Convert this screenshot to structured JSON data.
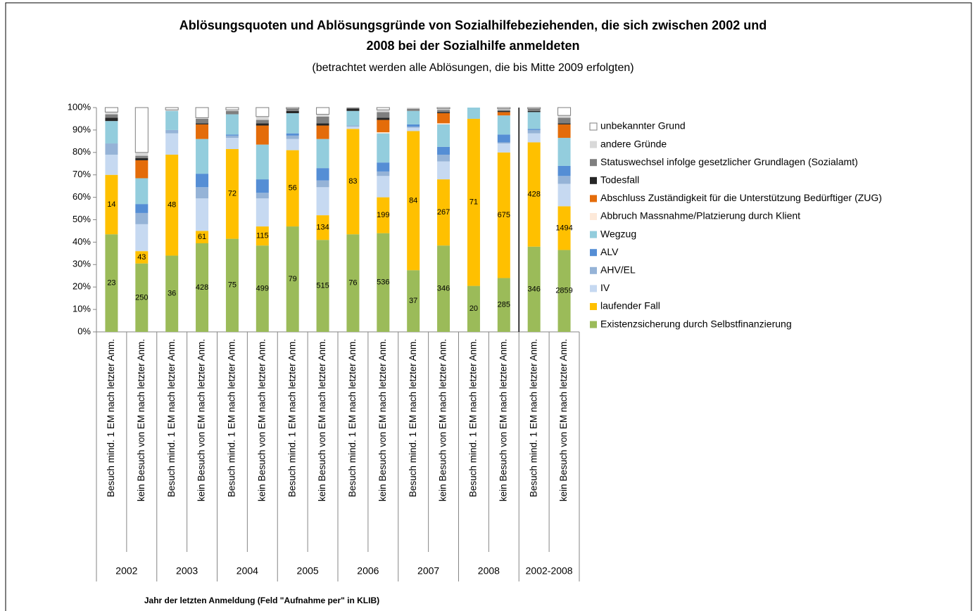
{
  "chart_data": {
    "type": "bar",
    "stacked": true,
    "title": [
      "Ablösungsquoten und Ablösungsgründe von Sozialhilfebeziehenden, die sich zwischen 2002 und",
      "2008 bei der Sozialhilfe anmeldeten"
    ],
    "subtitle": "(betrachtet werden alle Ablösungen, die bis Mitte 2009 erfolgten)",
    "x_label": "Jahr der letzten Anmeldung (Feld \"Aufnahme per\" in KLIB)",
    "categories": [
      "Besuch mind. 1 EM nach letzter Anm.",
      "kein Besuch von EM nach letzter Anm.",
      "Besuch mind. 1 EM nach letzter Anm.",
      "kein Besuch von EM nach letzter Anm.",
      "Besuch mind. 1 EM nach letzter Anm.",
      "kein Besuch von EM nach letzter Anm.",
      "Besuch mind. 1 EM nach letzter Anm.",
      "kein Besuch von EM nach letzter Anm.",
      "Besuch mind. 1 EM nach letzter Anm.",
      "kein Besuch von EM nach letzter Anm.",
      "Besuch mind. 1 EM nach letzter Anm.",
      "kein Besuch von EM nach letzter Anm.",
      "Besuch mind. 1 EM nach letzter Anm.",
      "kein Besuch von EM nach letzter Anm.",
      "Besuch mind. 1 EM nach letzter Anm.",
      "kein Besuch von EM nach letzter Anm."
    ],
    "groups": [
      "2002",
      "2003",
      "2004",
      "2005",
      "2006",
      "2007",
      "2008",
      "2002-2008"
    ],
    "ylim": [
      0,
      100
    ],
    "yticks": [
      {
        "value": 0,
        "label": "0%"
      },
      {
        "value": 10,
        "label": "10%"
      },
      {
        "value": 20,
        "label": "20%"
      },
      {
        "value": 30,
        "label": "30%"
      },
      {
        "value": 40,
        "label": "40%"
      },
      {
        "value": 50,
        "label": "50%"
      },
      {
        "value": 60,
        "label": "60%"
      },
      {
        "value": 70,
        "label": "70%"
      },
      {
        "value": 80,
        "label": "80%"
      },
      {
        "value": 90,
        "label": "90%"
      },
      {
        "value": 100,
        "label": "100%"
      }
    ],
    "grid": false,
    "legend": "right",
    "series": [
      {
        "name": "Existenzsicherung durch Selbstfinanzierung",
        "color": "#9bbb59",
        "values": [
          43.5,
          30.5,
          34,
          39.5,
          41.5,
          38.5,
          47,
          41,
          43.5,
          44,
          27.5,
          38.5,
          20.5,
          24,
          38,
          36.5
        ],
        "data_labels": [
          23,
          250,
          36,
          428,
          75,
          499,
          79,
          515,
          76,
          536,
          37,
          346,
          20,
          285,
          346,
          2859
        ]
      },
      {
        "name": "laufender Fall",
        "color": "#ffc000",
        "values": [
          26.5,
          5.5,
          45,
          5.5,
          40,
          8.5,
          34,
          11,
          47,
          16,
          62,
          29.5,
          74.5,
          56,
          46.5,
          19.5
        ],
        "data_labels": [
          14,
          43,
          48,
          61,
          72,
          115,
          56,
          134,
          83,
          199,
          84,
          267,
          71,
          675,
          428,
          1494
        ]
      },
      {
        "name": "IV",
        "color": "#c6d9f1",
        "values": [
          9,
          12,
          9.5,
          14.5,
          5,
          12.5,
          5,
          12.5,
          1,
          9.5,
          1.5,
          8,
          0,
          4,
          4,
          10
        ]
      },
      {
        "name": "AHV/EL",
        "color": "#95b3d7",
        "values": [
          5,
          5,
          1.5,
          5,
          1,
          2.5,
          1.5,
          3,
          0.5,
          2,
          0.5,
          3,
          0,
          0.5,
          1.5,
          3.5
        ]
      },
      {
        "name": "ALV",
        "color": "#558ed5",
        "values": [
          0,
          4,
          0,
          6,
          0.5,
          6,
          1,
          5.5,
          0,
          4,
          1,
          3.5,
          0,
          3.5,
          0.5,
          4.5
        ]
      },
      {
        "name": "Wegzug",
        "color": "#93cddd",
        "values": [
          10,
          11.5,
          8.5,
          15.5,
          9,
          15.5,
          9,
          13,
          6.5,
          13,
          6,
          10,
          5,
          8.5,
          7.5,
          12.5
        ]
      },
      {
        "name": "Abbruch Massnahme/Platzierung durch Klient",
        "color": "#fde9d9",
        "values": [
          0,
          0,
          0,
          0,
          0,
          0,
          0,
          0,
          0,
          0.5,
          0,
          0.5,
          0,
          0,
          0,
          0
        ]
      },
      {
        "name": "Abschluss Zuständigkeit für die Unterstützung Bedürftiger (ZUG)",
        "color": "#e46c0a",
        "values": [
          0,
          8,
          0,
          6.5,
          0,
          8.5,
          0,
          6,
          0,
          5.5,
          0,
          4.5,
          0,
          1.5,
          0,
          6
        ]
      },
      {
        "name": "Todesfall",
        "color": "#262626",
        "values": [
          1.5,
          1,
          0,
          0.5,
          0,
          1,
          1,
          1,
          1,
          1,
          0,
          0.5,
          0,
          0.5,
          0.5,
          0.5
        ]
      },
      {
        "name": "Statuswechsel infolge gesetzlicher Grundlagen (Sozialamt)",
        "color": "#7f7f7f",
        "values": [
          1.5,
          1,
          0,
          2,
          1.5,
          1.5,
          1,
          3,
          0.5,
          2.5,
          1,
          1,
          0,
          0.5,
          1,
          2.5
        ]
      },
      {
        "name": "andere Gründe",
        "color": "#d9d9d9",
        "values": [
          1,
          1.5,
          0.5,
          0.5,
          0.5,
          1.5,
          0,
          1,
          0,
          1,
          0.5,
          0.5,
          0,
          0.5,
          0,
          1
        ]
      },
      {
        "name": "unbekannter Grund",
        "color": "#ffffff",
        "values": [
          2,
          20,
          1,
          4.5,
          1,
          4,
          0.5,
          3,
          0,
          1,
          0,
          0.5,
          0,
          0.5,
          0.5,
          3.5
        ]
      }
    ]
  }
}
